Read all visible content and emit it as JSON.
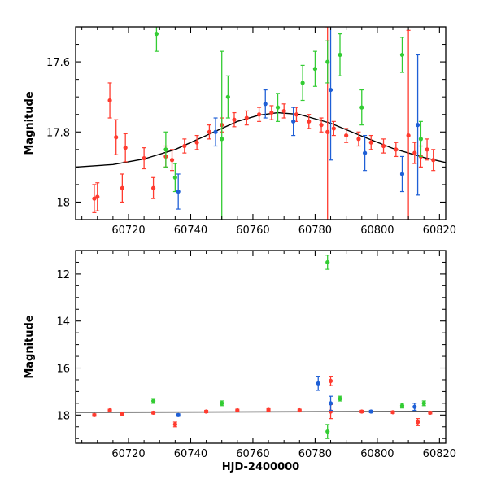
{
  "chart_data": [
    {
      "type": "scatter",
      "panel": "top",
      "title": "",
      "xlabel": "",
      "ylabel": "Magnitude",
      "xlim": [
        60703,
        60822
      ],
      "ylim": [
        17.5,
        18.05
      ],
      "y_inverted": true,
      "x_ticks": [
        60720,
        60740,
        60760,
        60780,
        60800,
        60820
      ],
      "x_tick_labels": [
        "60720",
        "60740",
        "60760",
        "60780",
        "60800",
        "60820"
      ],
      "y_ticks": [
        17.6,
        17.8,
        18
      ],
      "y_tick_labels": [
        "17.6",
        "17.8",
        "18"
      ],
      "grid": false,
      "legend": "none",
      "model_curve": {
        "color": "#000000",
        "x": [
          60703,
          60715,
          60725,
          60735,
          60745,
          60755,
          60762,
          60768,
          60775,
          60785,
          60795,
          60805,
          60815,
          60822
        ],
        "y": [
          17.9,
          17.893,
          17.877,
          17.85,
          17.81,
          17.77,
          17.752,
          17.745,
          17.75,
          17.775,
          17.812,
          17.847,
          17.873,
          17.887
        ]
      },
      "series": [
        {
          "color": "#ff3b2f",
          "points": [
            {
              "x": 60709,
              "y": 17.99,
              "err": 0.04
            },
            {
              "x": 60710,
              "y": 17.985,
              "err": 0.04
            },
            {
              "x": 60714,
              "y": 17.71,
              "err": 0.05
            },
            {
              "x": 60716,
              "y": 17.815,
              "err": 0.05
            },
            {
              "x": 60718,
              "y": 17.96,
              "err": 0.04
            },
            {
              "x": 60719,
              "y": 17.845,
              "err": 0.04
            },
            {
              "x": 60725,
              "y": 17.875,
              "err": 0.03
            },
            {
              "x": 60728,
              "y": 17.96,
              "err": 0.03
            },
            {
              "x": 60732,
              "y": 17.87,
              "err": 0.03
            },
            {
              "x": 60734,
              "y": 17.88,
              "err": 0.03
            },
            {
              "x": 60738,
              "y": 17.84,
              "err": 0.02
            },
            {
              "x": 60742,
              "y": 17.83,
              "err": 0.02
            },
            {
              "x": 60746,
              "y": 17.8,
              "err": 0.02
            },
            {
              "x": 60750,
              "y": 17.78,
              "err": 0.02
            },
            {
              "x": 60754,
              "y": 17.765,
              "err": 0.02
            },
            {
              "x": 60758,
              "y": 17.76,
              "err": 0.02
            },
            {
              "x": 60762,
              "y": 17.75,
              "err": 0.02
            },
            {
              "x": 60766,
              "y": 17.745,
              "err": 0.02
            },
            {
              "x": 60770,
              "y": 17.74,
              "err": 0.02
            },
            {
              "x": 60774,
              "y": 17.75,
              "err": 0.02
            },
            {
              "x": 60778,
              "y": 17.77,
              "err": 0.02
            },
            {
              "x": 60782,
              "y": 17.78,
              "err": 0.02
            },
            {
              "x": 60784,
              "y": 17.8,
              "err": 0.3
            },
            {
              "x": 60786,
              "y": 17.79,
              "err": 0.02
            },
            {
              "x": 60790,
              "y": 17.81,
              "err": 0.02
            },
            {
              "x": 60794,
              "y": 17.82,
              "err": 0.02
            },
            {
              "x": 60798,
              "y": 17.83,
              "err": 0.02
            },
            {
              "x": 60802,
              "y": 17.84,
              "err": 0.02
            },
            {
              "x": 60806,
              "y": 17.85,
              "err": 0.02
            },
            {
              "x": 60810,
              "y": 17.81,
              "err": 0.3
            },
            {
              "x": 60812,
              "y": 17.86,
              "err": 0.03
            },
            {
              "x": 60814,
              "y": 17.87,
              "err": 0.03
            },
            {
              "x": 60816,
              "y": 17.85,
              "err": 0.03
            },
            {
              "x": 60818,
              "y": 17.88,
              "err": 0.03
            }
          ]
        },
        {
          "color": "#33cc33",
          "points": [
            {
              "x": 60729,
              "y": 17.52,
              "err": 0.05
            },
            {
              "x": 60732,
              "y": 17.85,
              "err": 0.05
            },
            {
              "x": 60735,
              "y": 17.93,
              "err": 0.04
            },
            {
              "x": 60750,
              "y": 17.82,
              "err": 0.25
            },
            {
              "x": 60752,
              "y": 17.7,
              "err": 0.06
            },
            {
              "x": 60768,
              "y": 17.73,
              "err": 0.04
            },
            {
              "x": 60776,
              "y": 17.66,
              "err": 0.05
            },
            {
              "x": 60780,
              "y": 17.62,
              "err": 0.05
            },
            {
              "x": 60784,
              "y": 17.6,
              "err": 0.06
            },
            {
              "x": 60788,
              "y": 17.58,
              "err": 0.06
            },
            {
              "x": 60795,
              "y": 17.73,
              "err": 0.05
            },
            {
              "x": 60808,
              "y": 17.58,
              "err": 0.05
            },
            {
              "x": 60814,
              "y": 17.82,
              "err": 0.05
            }
          ]
        },
        {
          "color": "#1e5fd6",
          "points": [
            {
              "x": 60736,
              "y": 17.97,
              "err": 0.05
            },
            {
              "x": 60748,
              "y": 17.8,
              "err": 0.04
            },
            {
              "x": 60764,
              "y": 17.72,
              "err": 0.04
            },
            {
              "x": 60773,
              "y": 17.77,
              "err": 0.04
            },
            {
              "x": 60785,
              "y": 17.68,
              "err": 0.2
            },
            {
              "x": 60796,
              "y": 17.86,
              "err": 0.05
            },
            {
              "x": 60808,
              "y": 17.92,
              "err": 0.05
            },
            {
              "x": 60813,
              "y": 17.78,
              "err": 0.2
            }
          ]
        }
      ]
    },
    {
      "type": "scatter",
      "panel": "bottom",
      "title": "",
      "xlabel": "HJD-2400000",
      "ylabel": "Magnitude",
      "xlim": [
        60703,
        60822
      ],
      "ylim": [
        11.0,
        19.2
      ],
      "y_inverted": true,
      "x_ticks": [
        60720,
        60740,
        60760,
        60780,
        60800,
        60820
      ],
      "x_tick_labels": [
        "60720",
        "60740",
        "60760",
        "60780",
        "60800",
        "60820"
      ],
      "y_ticks": [
        12,
        14,
        16,
        18
      ],
      "y_tick_labels": [
        "12",
        "14",
        "16",
        "18"
      ],
      "grid": false,
      "legend": "none",
      "model_curve": {
        "color": "#000000",
        "x": [
          60703,
          60822
        ],
        "y": [
          17.88,
          17.85
        ]
      },
      "series": [
        {
          "color": "#ff3b2f",
          "points": [
            {
              "x": 60709,
              "y": 18.0,
              "err": 0.05
            },
            {
              "x": 60714,
              "y": 17.8,
              "err": 0.05
            },
            {
              "x": 60718,
              "y": 17.95,
              "err": 0.05
            },
            {
              "x": 60728,
              "y": 17.9,
              "err": 0.05
            },
            {
              "x": 60735,
              "y": 18.4,
              "err": 0.1
            },
            {
              "x": 60745,
              "y": 17.85,
              "err": 0.05
            },
            {
              "x": 60755,
              "y": 17.8,
              "err": 0.05
            },
            {
              "x": 60765,
              "y": 17.78,
              "err": 0.05
            },
            {
              "x": 60775,
              "y": 17.8,
              "err": 0.05
            },
            {
              "x": 60785,
              "y": 16.55,
              "err": 0.2
            },
            {
              "x": 60785,
              "y": 17.85,
              "err": 0.3
            },
            {
              "x": 60795,
              "y": 17.85,
              "err": 0.05
            },
            {
              "x": 60805,
              "y": 17.88,
              "err": 0.05
            },
            {
              "x": 60813,
              "y": 18.3,
              "err": 0.15
            },
            {
              "x": 60817,
              "y": 17.9,
              "err": 0.05
            }
          ]
        },
        {
          "color": "#33cc33",
          "points": [
            {
              "x": 60728,
              "y": 17.4,
              "err": 0.1
            },
            {
              "x": 60750,
              "y": 17.5,
              "err": 0.1
            },
            {
              "x": 60784,
              "y": 11.5,
              "err": 0.3
            },
            {
              "x": 60784,
              "y": 18.7,
              "err": 0.3
            },
            {
              "x": 60788,
              "y": 17.3,
              "err": 0.1
            },
            {
              "x": 60808,
              "y": 17.6,
              "err": 0.1
            },
            {
              "x": 60815,
              "y": 17.5,
              "err": 0.1
            }
          ]
        },
        {
          "color": "#1e5fd6",
          "points": [
            {
              "x": 60736,
              "y": 18.0,
              "err": 0.05
            },
            {
              "x": 60781,
              "y": 16.65,
              "err": 0.3
            },
            {
              "x": 60785,
              "y": 17.5,
              "err": 0.3
            },
            {
              "x": 60798,
              "y": 17.85,
              "err": 0.05
            },
            {
              "x": 60812,
              "y": 17.65,
              "err": 0.15
            }
          ]
        }
      ]
    }
  ]
}
